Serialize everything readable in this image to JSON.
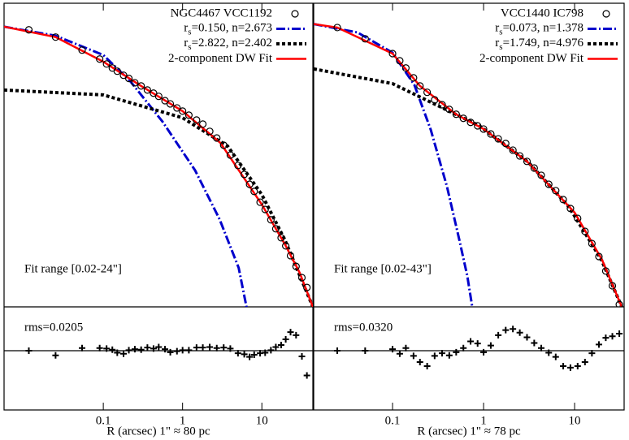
{
  "chart_data": [
    {
      "type": "profile",
      "log_x": true,
      "xlim": [
        0.0056,
        44
      ],
      "xticks": [
        0.1,
        1,
        10
      ],
      "ylim": [
        0,
        105
      ],
      "xlabel": "R (arcsec)  1\" ≈  80 pc",
      "annotation": "Fit range [0.02-24\"]",
      "x": [
        0.0115,
        0.025,
        0.054,
        0.09,
        0.11,
        0.13,
        0.15,
        0.18,
        0.21,
        0.25,
        0.3,
        0.36,
        0.43,
        0.5,
        0.6,
        0.7,
        0.85,
        1.0,
        1.2,
        1.5,
        1.8,
        2.2,
        2.7,
        3.3,
        4,
        5,
        6,
        7,
        8,
        9.5,
        11,
        13,
        15,
        17.5,
        20,
        23,
        27,
        32,
        37
      ],
      "series": [
        {
          "name": "NGC4467 VCC1192",
          "color": "#000000",
          "style": "circle",
          "values": [
            95.8,
            93.3,
            88.8,
            85.7,
            84.0,
            82.6,
            81.5,
            80.1,
            79.0,
            77.5,
            76.4,
            75.0,
            73.9,
            72.8,
            71.3,
            70.2,
            68.8,
            67.7,
            66.3,
            64.6,
            63.2,
            60.7,
            58.4,
            55.9,
            52.5,
            48.9,
            45.8,
            42.4,
            39.9,
            36.2,
            33.7,
            30.1,
            27.0,
            23.9,
            21.1,
            17.7,
            14.0,
            10.1,
            6.7
          ]
        },
        {
          "name": "rs=0.150, n=2.673",
          "color": "#0000cc",
          "style": "dashdot",
          "x": [
            0.0056,
            0.0248,
            0.1,
            0.218,
            0.56,
            1.44,
            2.93,
            5.1,
            6.4
          ],
          "values": [
            96.9,
            93.8,
            87.1,
            78.1,
            64.0,
            47.2,
            30.3,
            13.5,
            0
          ]
        },
        {
          "name": "rs=2.822, n=2.402",
          "color": "#000000",
          "style": "dashed",
          "x": [
            0.0056,
            0.1,
            1,
            3.7,
            10,
            19.4,
            44
          ],
          "values": [
            75.0,
            73.3,
            65.4,
            55.6,
            38.8,
            23.3,
            0
          ]
        },
        {
          "name": "2-component DW Fit",
          "color": "#ff0000",
          "style": "solid",
          "x": [
            0.0056,
            0.025,
            0.1,
            0.3,
            1,
            3,
            10,
            20,
            30,
            44
          ],
          "values": [
            96.9,
            93.3,
            84.8,
            76.4,
            67.7,
            56.7,
            35.4,
            21.1,
            11.8,
            0
          ]
        }
      ],
      "residuals": {
        "label": "rms=0.0205",
        "ylim": [
          -0.115,
          0.085
        ],
        "values": [
          0.0,
          -0.009,
          0.005,
          0.005,
          0.004,
          0.002,
          -0.004,
          -0.006,
          0.001,
          0.003,
          0.002,
          0.006,
          0.004,
          0.007,
          0.003,
          -0.003,
          -0.001,
          0.001,
          0.001,
          0.006,
          0.006,
          0.007,
          0.005,
          0.006,
          0.004,
          -0.005,
          -0.007,
          -0.012,
          -0.008,
          -0.005,
          -0.004,
          0.001,
          0.007,
          0.011,
          0.022,
          0.036,
          0.03,
          -0.011,
          -0.048
        ]
      }
    },
    {
      "type": "profile",
      "log_x": true,
      "xlim": [
        0.0136,
        35
      ],
      "xticks": [
        0.1,
        1,
        10
      ],
      "ylim": [
        0,
        105
      ],
      "xlabel": "R (arcsec)  1\" ≈  78 pc",
      "annotation": "Fit range [0.02-43\"]",
      "x": [
        0.0247,
        0.05,
        0.1,
        0.12,
        0.14,
        0.17,
        0.2,
        0.24,
        0.29,
        0.35,
        0.42,
        0.5,
        0.6,
        0.72,
        0.86,
        1.0,
        1.2,
        1.45,
        1.75,
        2.1,
        2.5,
        3,
        3.6,
        4.3,
        5.2,
        6.2,
        7.5,
        9,
        10.8,
        13,
        15.5,
        18.5,
        22,
        26,
        31
      ],
      "series": [
        {
          "name": "VCC1440 IC798",
          "color": "#000000",
          "style": "circle",
          "values": [
            96.6,
            92.7,
            87.6,
            85.1,
            82.6,
            79.2,
            76.4,
            74.2,
            71.6,
            69.9,
            68.3,
            66.6,
            65.2,
            63.8,
            62.6,
            61.5,
            59.8,
            58.1,
            56.5,
            54.2,
            52.2,
            50.3,
            48.0,
            45.5,
            42.4,
            40.2,
            37.1,
            34.0,
            30.6,
            26.1,
            21.9,
            17.4,
            12.4,
            7.3,
            0.8
          ]
        },
        {
          "name": "rs=0.073, n=1.378",
          "color": "#0000cc",
          "style": "dashdot",
          "x": [
            0.0136,
            0.0413,
            0.1,
            0.174,
            0.263,
            0.396,
            0.54,
            0.662,
            0.75
          ],
          "values": [
            97.8,
            94.9,
            87.9,
            76.7,
            61.2,
            41.6,
            23.3,
            10.7,
            0
          ]
        },
        {
          "name": "rs=1.749, n=4.976",
          "color": "#000000",
          "style": "dashed",
          "x": [
            0.0136,
            0.1,
            0.9,
            3.1,
            8.66,
            19.7,
            33
          ],
          "values": [
            82.3,
            77.2,
            62.6,
            50.0,
            34.6,
            16.3,
            0
          ]
        },
        {
          "name": "2-component DW Fit",
          "color": "#ff0000",
          "style": "solid",
          "x": [
            0.0136,
            0.0247,
            0.1,
            0.2,
            0.5,
            1,
            3,
            10,
            20,
            33
          ],
          "values": [
            97.8,
            96.6,
            87.6,
            76.4,
            66.6,
            61.5,
            50.3,
            32.6,
            16.3,
            0
          ]
        }
      ],
      "residuals": {
        "label": "rms=0.0320",
        "ylim": [
          -0.115,
          0.085
        ],
        "values": [
          0.0,
          0.0,
          0.003,
          -0.006,
          0.005,
          -0.01,
          -0.022,
          -0.03,
          -0.01,
          -0.005,
          -0.009,
          -0.003,
          0.005,
          0.018,
          0.014,
          -0.003,
          0.01,
          0.03,
          0.04,
          0.042,
          0.035,
          0.026,
          0.015,
          0.005,
          -0.004,
          -0.012,
          -0.03,
          -0.033,
          -0.03,
          -0.022,
          -0.005,
          0.012,
          0.025,
          0.028,
          0.033
        ]
      }
    }
  ]
}
